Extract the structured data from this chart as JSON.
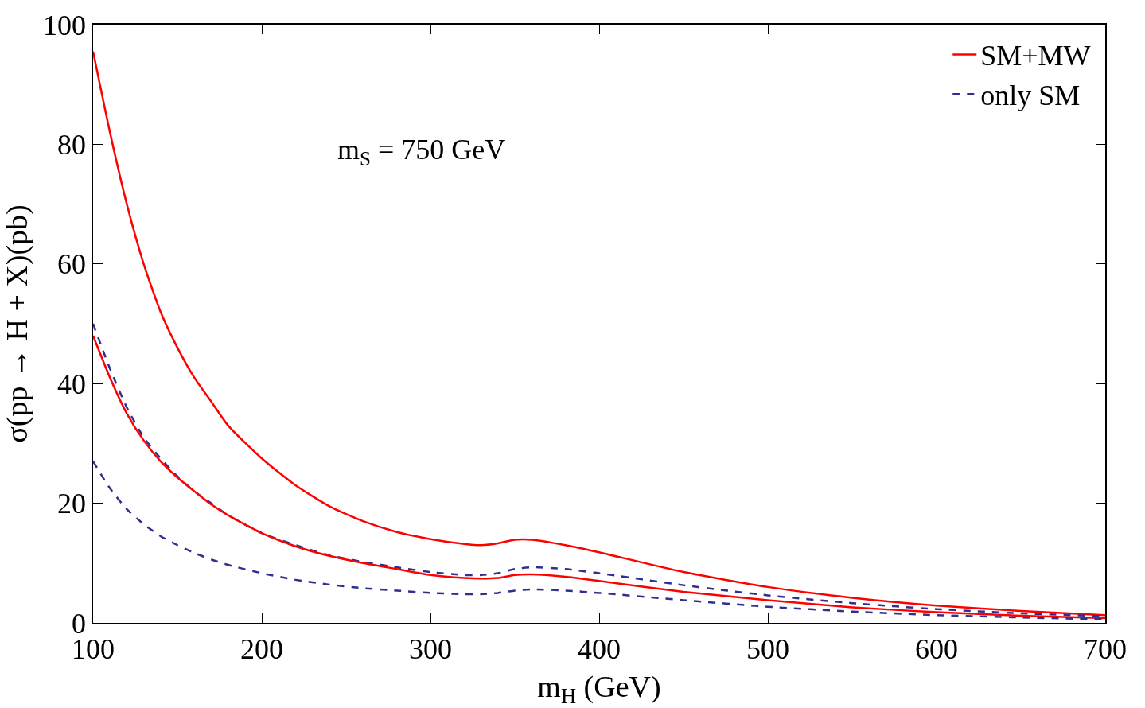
{
  "chart_data": {
    "type": "line",
    "xlabel": "m$_{H}$ (GeV)",
    "ylabel": "σ(pp → H + X)(pb)",
    "annotations": [
      "m$_{S}$ = 750 GeV"
    ],
    "xlim": [
      100,
      700
    ],
    "xticks": [
      100,
      200,
      300,
      400,
      500,
      600,
      700
    ],
    "ylim": [
      0,
      100
    ],
    "yticks": [
      0,
      20,
      40,
      60,
      80,
      100
    ],
    "legend": "top right",
    "marker": "none",
    "x": [
      100,
      110,
      120,
      130,
      140,
      150,
      160,
      170,
      180,
      200,
      220,
      240,
      260,
      280,
      300,
      320,
      330,
      340,
      350,
      360,
      380,
      400,
      450,
      500,
      550,
      600,
      650,
      700
    ],
    "series": [
      {
        "name": "SM+MW",
        "color": "#ff0000",
        "line_style": "solid",
        "values": [
          95.5,
          82,
          70,
          60,
          52,
          46,
          41,
          37,
          33,
          27.5,
          23,
          19.5,
          17,
          15.2,
          14,
          13.2,
          13,
          13.3,
          13.9,
          13.9,
          13,
          11.8,
          8.5,
          6,
          4.2,
          2.9,
          2,
          1.3
        ]
      },
      {
        "name": "only SM",
        "color": "#2f2f8f",
        "line_style": "dashed",
        "values": [
          50,
          42.5,
          36,
          31,
          27.5,
          24.5,
          22,
          20,
          18,
          15,
          13,
          11.3,
          10.2,
          9.3,
          8.5,
          8,
          8,
          8.3,
          9,
          9.3,
          9,
          8.3,
          6.3,
          4.6,
          3.3,
          2.3,
          1.6,
          1.1
        ]
      },
      {
        "color": "#ff0000",
        "line_style": "solid",
        "values": [
          48,
          41,
          35,
          30.5,
          27,
          24.3,
          22,
          19.8,
          18,
          15,
          12.8,
          11.2,
          10,
          9,
          8,
          7.5,
          7.4,
          7.5,
          8,
          8.1,
          7.7,
          7,
          5.2,
          3.8,
          2.6,
          1.8,
          1.2,
          0.8
        ]
      },
      {
        "color": "#2f2f8f",
        "line_style": "dashed",
        "values": [
          27,
          22.5,
          19,
          16.5,
          14.5,
          13,
          11.7,
          10.6,
          9.7,
          8.3,
          7.2,
          6.4,
          5.8,
          5.4,
          5,
          4.8,
          4.8,
          5,
          5.4,
          5.6,
          5.4,
          5,
          3.8,
          2.7,
          1.9,
          1.3,
          0.9,
          0.6
        ]
      }
    ]
  }
}
